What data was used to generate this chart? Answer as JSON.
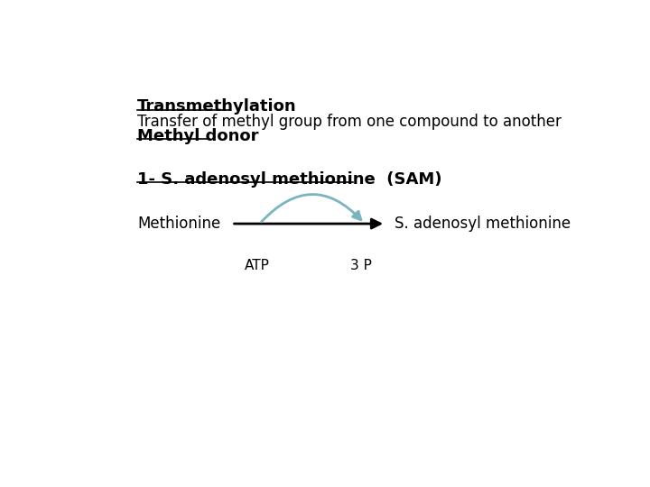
{
  "bg_color": "#ffffff",
  "title_line1": "Transmethylation",
  "title_line2": "Transfer of methyl group from one compound to another",
  "title_line3": "Methyl donor",
  "section_label": "1- S. adenosyl methionine  (SAM)",
  "left_label": "Methionine",
  "right_label": "S. adenosyl methionine",
  "atp_label": "ATP",
  "pi_label": "3 P",
  "arrow_color": "#7ab5bf",
  "main_arrow_color": "#000000",
  "title1_fontsize": 13,
  "title2_fontsize": 12,
  "section_fontsize": 13,
  "label_fontsize": 12,
  "small_fontsize": 11,
  "underline_lw": 1.2
}
